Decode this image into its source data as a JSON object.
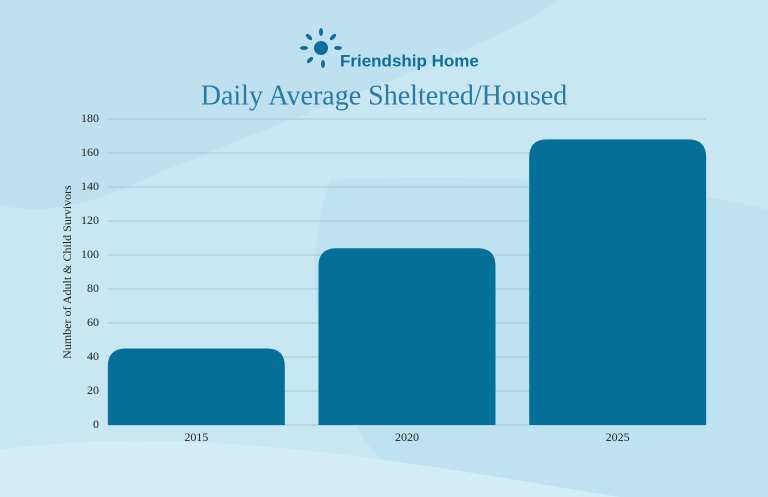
{
  "brand": "Friendship Home",
  "chart_data": {
    "type": "bar",
    "title": "Daily Average Sheltered/Housed",
    "y_label": "Number of Adult & Child Survivors",
    "categories": [
      "2015",
      "2020",
      "2025"
    ],
    "values": [
      45,
      104,
      168
    ],
    "color": "#046f97",
    "ylim": [
      0,
      180
    ],
    "yticks": [
      0,
      20,
      40,
      60,
      80,
      100,
      120,
      140,
      160,
      180
    ],
    "grid": true
  }
}
